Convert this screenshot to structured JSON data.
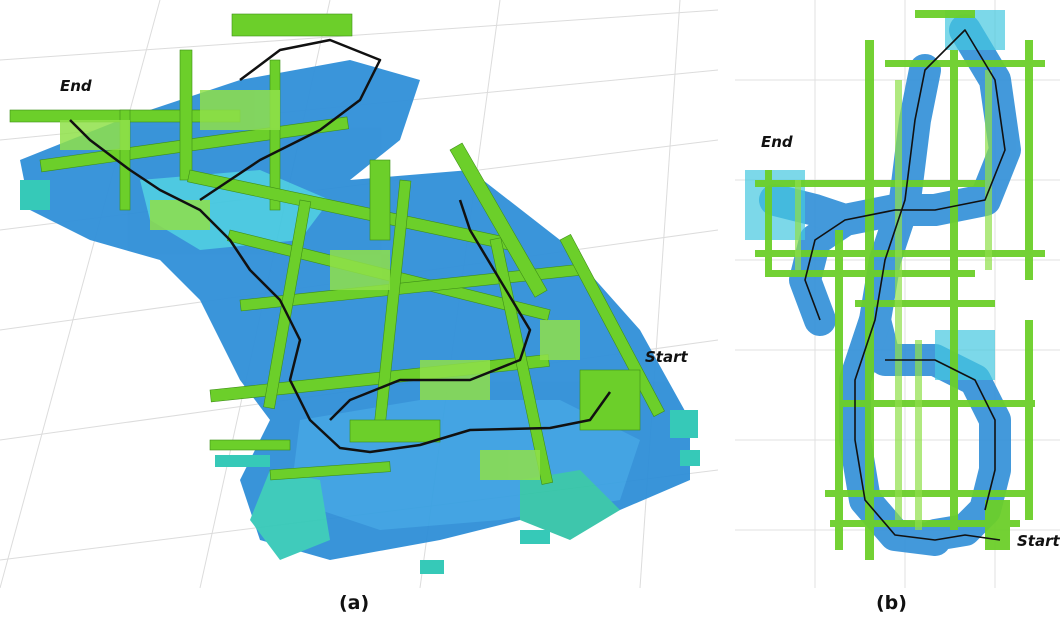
{
  "figure": {
    "panel_a": {
      "label_end": "End",
      "label_start": "Start",
      "caption": "(a)"
    },
    "panel_b": {
      "label_end": "End",
      "label_start": "Start",
      "caption": "(b)"
    }
  },
  "colors": {
    "voxel_green": "#6ccf2a",
    "voxel_light_green": "#8fe04a",
    "voxel_teal": "#36c9b8",
    "voxel_blue": "#2f8fd8",
    "voxel_cyan": "#45c7e0",
    "trajectory": "#111111",
    "grid": "#d6d6d6"
  }
}
